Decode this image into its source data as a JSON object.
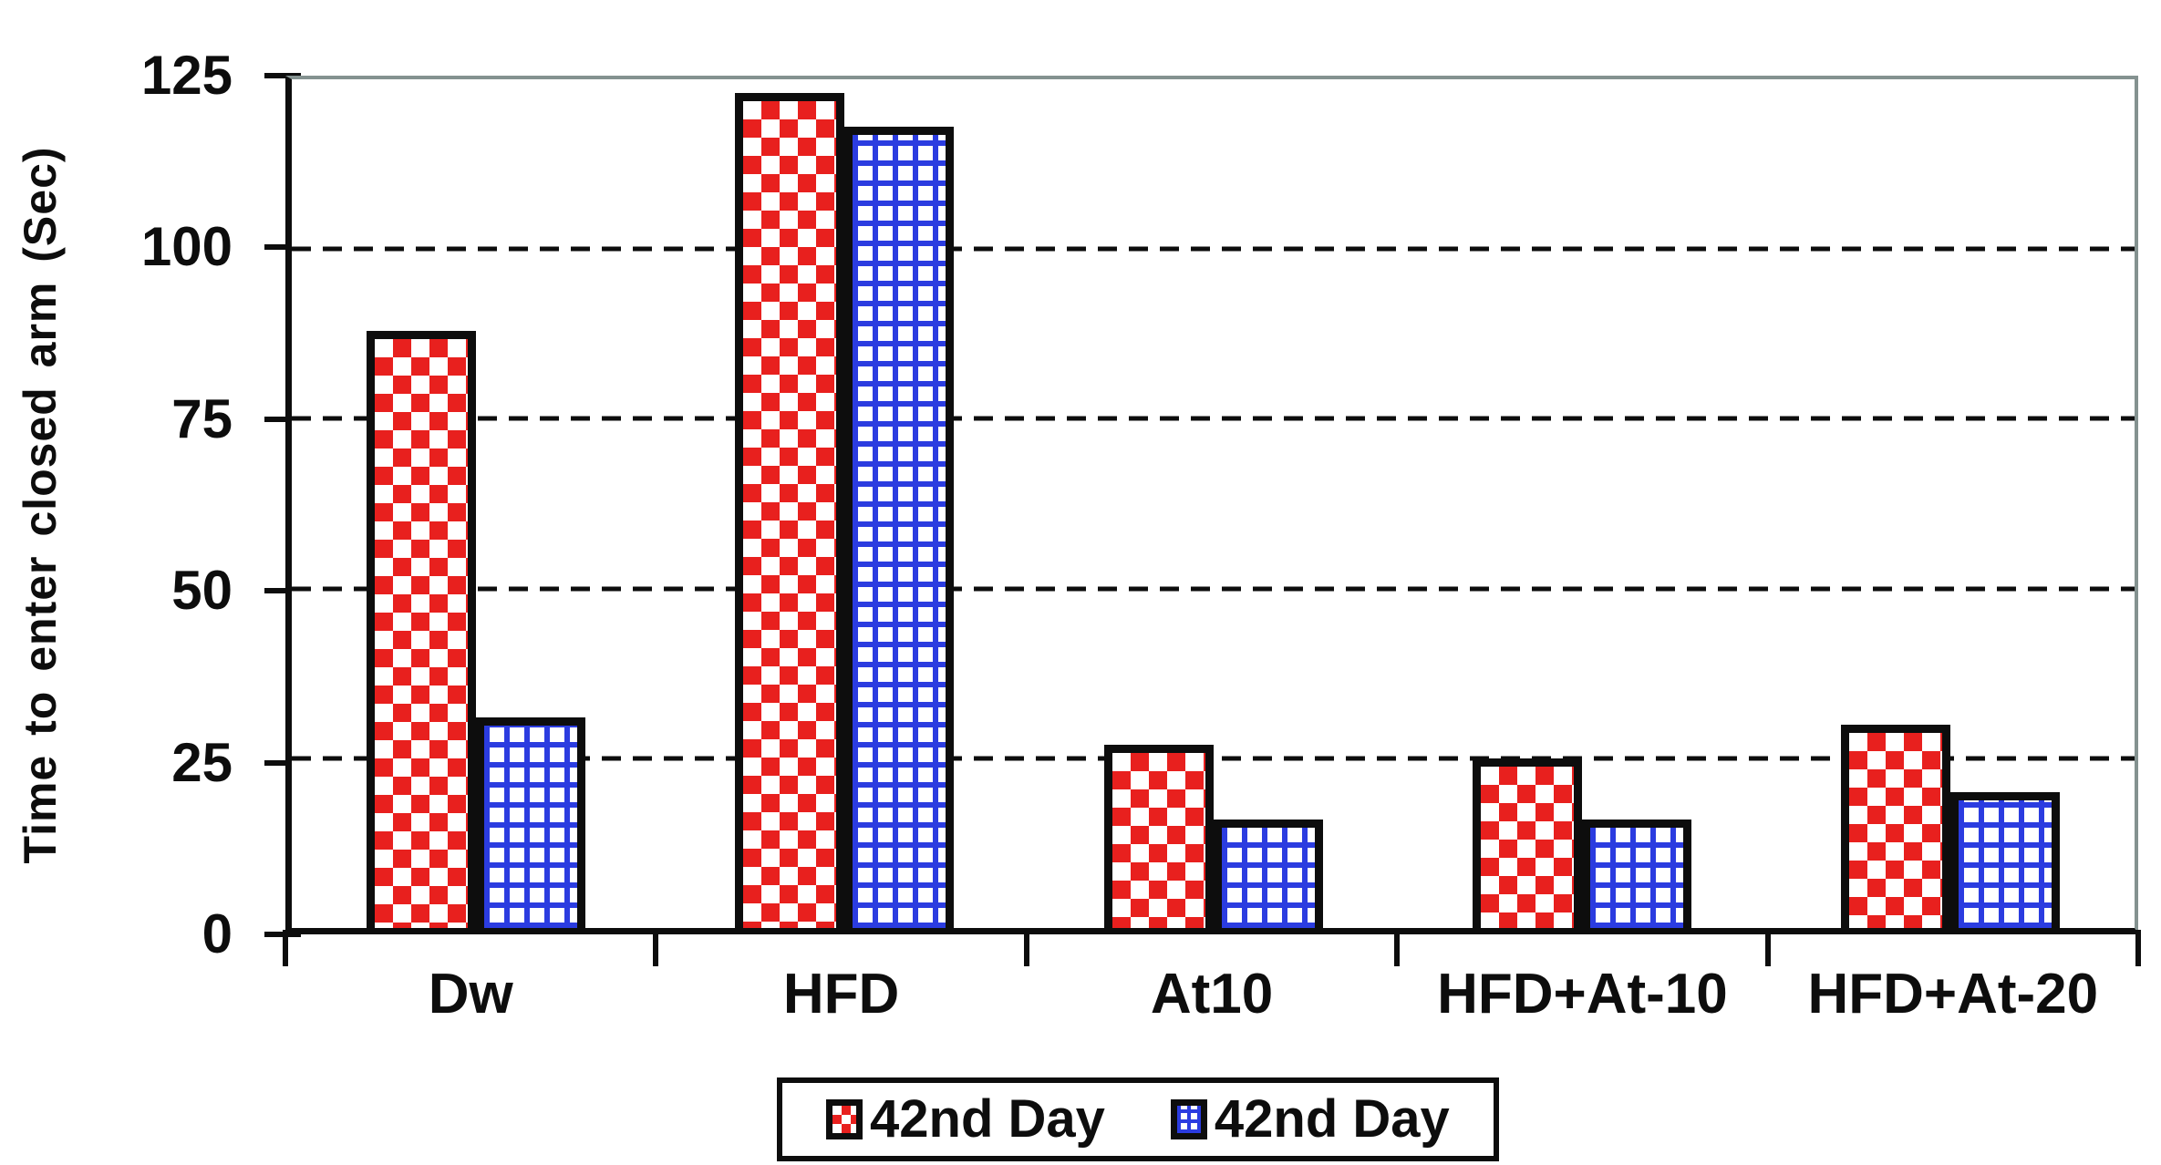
{
  "chart_data": {
    "type": "bar",
    "title": "",
    "xlabel": "",
    "ylabel": "Time to enter closed arm (Sec)",
    "ylim": [
      0,
      125
    ],
    "yticks": [
      0,
      25,
      50,
      75,
      100,
      125
    ],
    "gridlines": [
      25,
      50,
      75,
      100
    ],
    "grid": "horizontal dashed black lines; solid gray top and right plot border",
    "legend_position": "bottom-center",
    "categories": [
      "Dw",
      "HFD",
      "At10",
      "HFD+At-10",
      "HFD+At-20"
    ],
    "series": [
      {
        "name": "42nd Day",
        "pattern": "red-checker",
        "color": "#e8201e",
        "values": [
          88,
          123,
          27,
          25,
          30
        ]
      },
      {
        "name": "42nd Day",
        "pattern": "blue-grid",
        "color": "#2b3ce0",
        "values": [
          31,
          118,
          16,
          16,
          20
        ]
      }
    ],
    "colors": {
      "axis": "#0d0d0d",
      "plot_border": "#849290",
      "background": "#ffffff"
    }
  }
}
